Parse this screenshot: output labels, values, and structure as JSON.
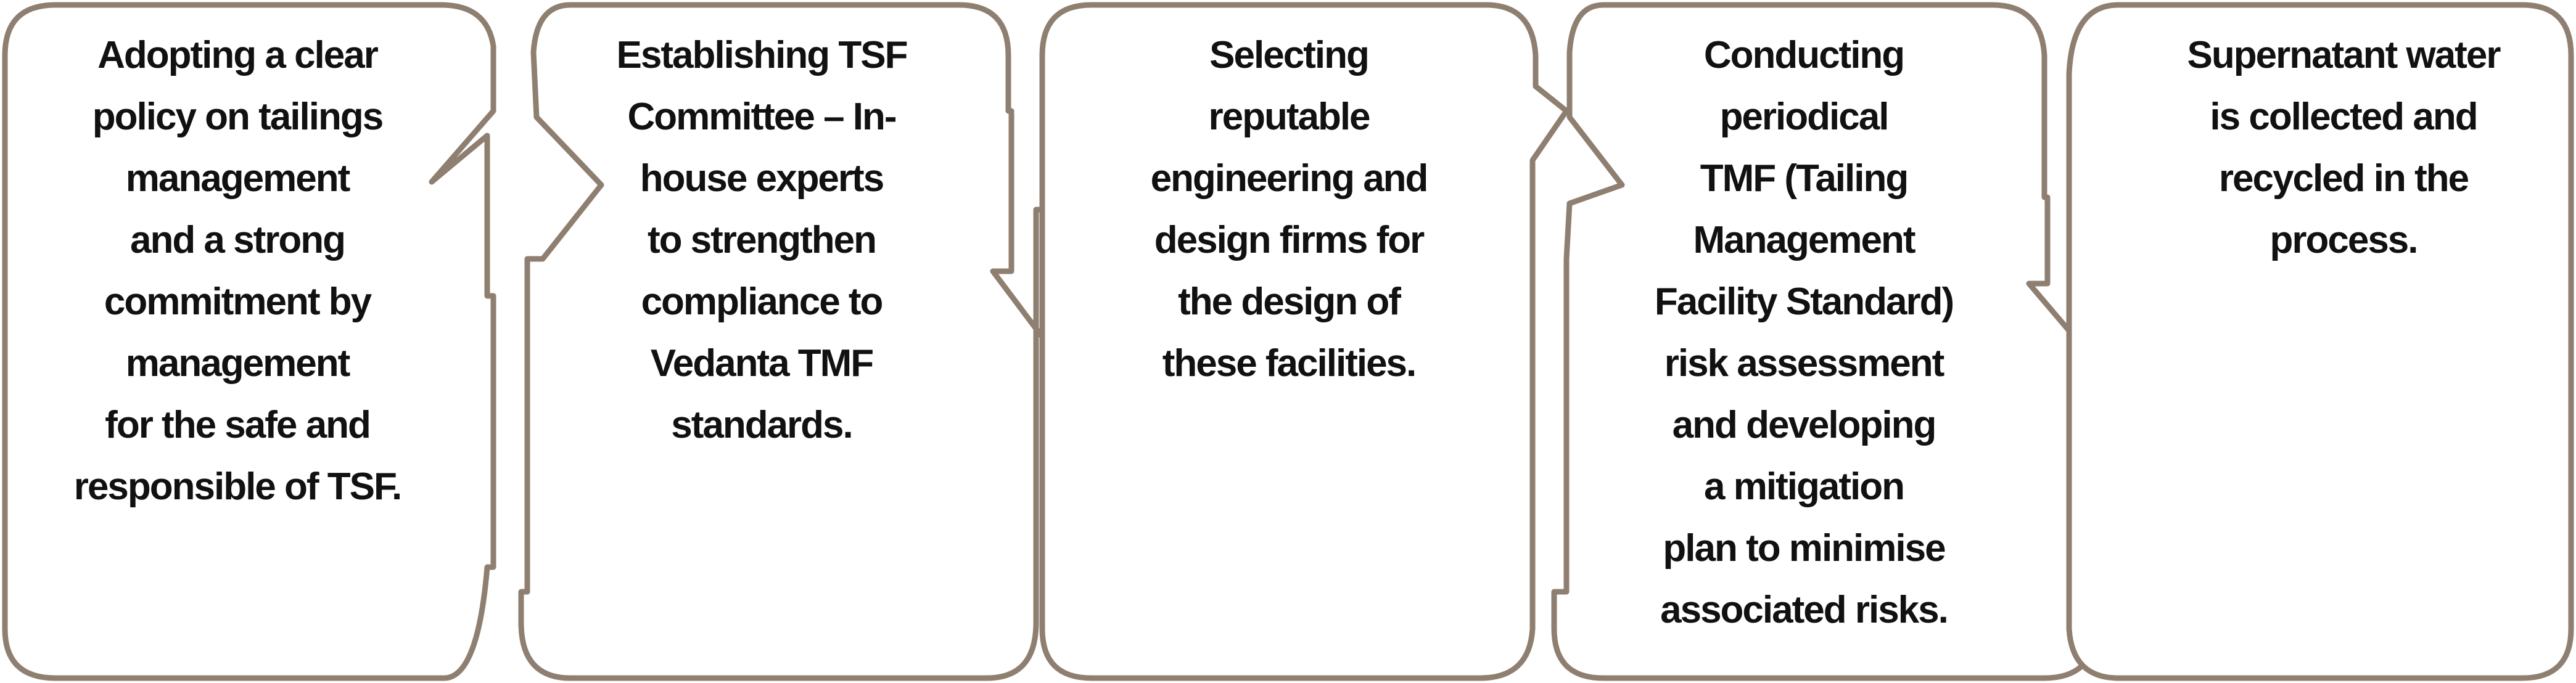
{
  "process": {
    "steps": [
      {
        "lines": [
          "Adopting a clear",
          "policy on tailings",
          "management",
          "and a strong",
          "commitment by",
          "management",
          "for the safe and",
          "responsible of TSF."
        ]
      },
      {
        "lines": [
          "Establishing TSF",
          "Committee – In-",
          "house experts",
          "to strengthen",
          "compliance to",
          "Vedanta TMF",
          "standards."
        ]
      },
      {
        "lines": [
          "Selecting",
          "reputable",
          "engineering and",
          "design firms for",
          "the design of",
          "these facilities."
        ]
      },
      {
        "lines": [
          "Conducting",
          "periodical",
          "TMF (Tailing",
          "Management",
          "Facility Standard)",
          "risk assessment",
          "and developing",
          "a mitigation",
          "plan to minimise",
          "associated risks."
        ]
      },
      {
        "lines": [
          "Supernatant water",
          "is collected and",
          "recycled in the",
          "process."
        ]
      }
    ]
  },
  "colors": {
    "border": "#8f7f70",
    "text": "#111111",
    "background": "#ffffff"
  }
}
